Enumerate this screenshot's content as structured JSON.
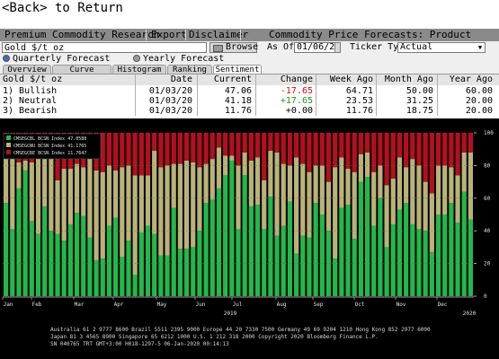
{
  "nav": {
    "back_label": "<Back> to Return"
  },
  "menu": {
    "items": [
      "Premium Commodity Research",
      "Export",
      "Disclaimer"
    ],
    "title": "Commodity Price Forecasts: Product Detail"
  },
  "security": {
    "value": "Gold $/t oz",
    "browse_label": "Browse",
    "asof_label": "As Of",
    "asof_value": "01/06/20",
    "ticker_label": "Ticker Type",
    "ticker_value": "Actual"
  },
  "forecast_options": {
    "quarterly": "Quarterly Forecast",
    "yearly": "Yearly Forecast",
    "selected": "quarterly"
  },
  "tabs": [
    {
      "label": "Overview"
    },
    {
      "label": "Curve Analysis"
    },
    {
      "label": "Histogram"
    },
    {
      "label": "Ranking"
    },
    {
      "label": "Sentiment",
      "active": true
    }
  ],
  "table": {
    "title": "Gold $/t oz",
    "columns": [
      "Date",
      "Current",
      "Change",
      "Week Ago",
      "Month Ago",
      "Year Ago"
    ],
    "rows": [
      {
        "label": "1) Bullish",
        "date": "01/03/20",
        "current": "47.06",
        "change": "-17.65",
        "week_ago": "64.71",
        "month_ago": "50.00",
        "year_ago": "60.00"
      },
      {
        "label": "2) Neutral",
        "date": "01/03/20",
        "current": "41.18",
        "change": "+17.65",
        "week_ago": "23.53",
        "month_ago": "31.25",
        "year_ago": "20.00"
      },
      {
        "label": "3) Bearish",
        "date": "01/03/20",
        "current": "11.76",
        "change": "+0.00",
        "week_ago": "11.76",
        "month_ago": "18.75",
        "year_ago": "20.00"
      }
    ]
  },
  "colors": {
    "bullish": "#22b84a",
    "neutral": "#b9b27a",
    "bearish": "#b50f1f",
    "negative_change": "#d01010",
    "positive_change": "#1a9a1a"
  },
  "chart_data": {
    "type": "bar",
    "stacked": true,
    "ylim": [
      0,
      100
    ],
    "yticks": [
      0,
      20,
      40,
      60,
      80,
      100
    ],
    "legend": [
      {
        "name": "CMSEGCBL BCSN Index 47.0588",
        "color": "#22b84a"
      },
      {
        "name": "CMSEGCNU BCSN Index 41.1765",
        "color": "#b9b27a"
      },
      {
        "name": "CMSEGCBE BCSN Index 11.7647",
        "color": "#b50f1f"
      }
    ],
    "legend_position": "top-left",
    "x_month_labels": [
      "Jan",
      "Feb",
      "Mar",
      "Apr",
      "May",
      "Jun",
      "Jul",
      "Aug",
      "Sep",
      "Oct",
      "Nov",
      "Dec"
    ],
    "x_year_labels": [
      "2019",
      "2020"
    ],
    "series": [
      {
        "name": "CMSEGCBL BCSN Index",
        "values": [
          57,
          41,
          66,
          77,
          46,
          38,
          55,
          40,
          38,
          34,
          44,
          51,
          49,
          36,
          22,
          23,
          43,
          48,
          24,
          34,
          13,
          39,
          43,
          38,
          25,
          25,
          54,
          29,
          29,
          30,
          40,
          57,
          59,
          66,
          74,
          83,
          41,
          74,
          55,
          56,
          41,
          61,
          37,
          43,
          58,
          26,
          37,
          36,
          57,
          50,
          40,
          23,
          54,
          56,
          35,
          70,
          73,
          43,
          60,
          30,
          44,
          53,
          57,
          44,
          41,
          40,
          27,
          50,
          50,
          57,
          45,
          64,
          47
        ]
      },
      {
        "name": "CMSEGCNU BCSN Index",
        "values": [
          34,
          47,
          16,
          6,
          36,
          50,
          35,
          48,
          33,
          44,
          34,
          30,
          30,
          49,
          55,
          53,
          37,
          29,
          55,
          46,
          61,
          35,
          31,
          51,
          54,
          55,
          27,
          52,
          54,
          52,
          39,
          24,
          25,
          25,
          12,
          3,
          39,
          14,
          28,
          29,
          30,
          28,
          51,
          38,
          22,
          59,
          44,
          40,
          23,
          30,
          30,
          56,
          31,
          22,
          41,
          17,
          15,
          33,
          20,
          38,
          28,
          32,
          22,
          40,
          39,
          30,
          36,
          30,
          30,
          22,
          29,
          24,
          41
        ]
      },
      {
        "name": "CMSEGCBE BCSN Index",
        "values": [
          9,
          12,
          18,
          17,
          18,
          12,
          10,
          12,
          29,
          22,
          22,
          19,
          21,
          15,
          23,
          24,
          20,
          23,
          21,
          20,
          26,
          26,
          26,
          11,
          21,
          20,
          19,
          19,
          17,
          18,
          21,
          19,
          16,
          9,
          14,
          14,
          20,
          12,
          17,
          15,
          29,
          11,
          12,
          19,
          20,
          15,
          19,
          24,
          20,
          20,
          30,
          21,
          15,
          22,
          24,
          13,
          12,
          24,
          20,
          32,
          28,
          15,
          21,
          16,
          20,
          30,
          37,
          20,
          20,
          21,
          26,
          12,
          12
        ]
      }
    ]
  },
  "footer": {
    "line1": "Australia 61 2 9777 8600  Brazil 5511 2395 9000  Europe 44 20 7330 7500  Germany 49 69 9204 1210  Hong Kong 852 2977 6000",
    "line2": "Japan 81 3 4565 8900      Singapore 65 6212 1000      U.S. 1 212 318 2000          Copyright 2020 Bloomberg Finance L.P.",
    "line3": "SN 040765 TRT  GMT+3:00 H018-1297-5 06-Jan-2020 00:14:13"
  }
}
